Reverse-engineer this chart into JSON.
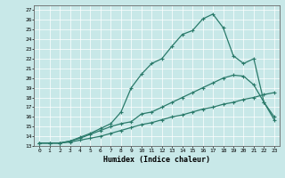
{
  "title": "",
  "xlabel": "Humidex (Indice chaleur)",
  "ylabel": "",
  "bg_color": "#c8e8e8",
  "line_color": "#2a7a6a",
  "xlim": [
    -0.5,
    23.5
  ],
  "ylim": [
    13,
    27.5
  ],
  "yticks": [
    13,
    14,
    15,
    16,
    17,
    18,
    19,
    20,
    21,
    22,
    23,
    24,
    25,
    26,
    27
  ],
  "xticks": [
    0,
    1,
    2,
    3,
    4,
    5,
    6,
    7,
    8,
    9,
    10,
    11,
    12,
    13,
    14,
    15,
    16,
    17,
    18,
    19,
    20,
    21,
    22,
    23
  ],
  "line1_x": [
    0,
    1,
    2,
    3,
    4,
    5,
    6,
    7,
    8,
    9,
    10,
    11,
    12,
    13,
    14,
    15,
    16,
    17,
    18,
    19,
    20,
    21,
    22,
    23
  ],
  "line1_y": [
    13.3,
    13.3,
    13.3,
    13.4,
    13.6,
    13.8,
    14.0,
    14.3,
    14.6,
    14.9,
    15.2,
    15.4,
    15.7,
    16.0,
    16.2,
    16.5,
    16.8,
    17.0,
    17.3,
    17.5,
    17.8,
    18.0,
    18.3,
    18.5
  ],
  "line2_x": [
    0,
    1,
    2,
    3,
    4,
    5,
    6,
    7,
    8,
    9,
    10,
    11,
    12,
    13,
    14,
    15,
    16,
    17,
    18,
    19,
    20,
    21,
    22,
    23
  ],
  "line2_y": [
    13.3,
    13.3,
    13.3,
    13.5,
    13.8,
    14.2,
    14.6,
    15.0,
    15.3,
    15.5,
    16.3,
    16.5,
    17.0,
    17.5,
    18.0,
    18.5,
    19.0,
    19.5,
    20.0,
    20.3,
    20.2,
    19.3,
    17.5,
    16.0
  ],
  "line3_x": [
    0,
    1,
    2,
    3,
    4,
    5,
    6,
    7,
    8,
    9,
    10,
    11,
    12,
    13,
    14,
    15,
    16,
    17,
    18,
    19,
    20,
    21,
    22,
    23
  ],
  "line3_y": [
    13.3,
    13.3,
    13.3,
    13.5,
    13.9,
    14.3,
    14.8,
    15.3,
    16.5,
    19.0,
    20.4,
    21.5,
    22.0,
    23.3,
    24.5,
    24.9,
    26.1,
    26.6,
    25.2,
    22.3,
    21.5,
    22.0,
    17.5,
    15.7
  ],
  "marker": "+",
  "markersize": 3.5,
  "linewidth": 0.9
}
